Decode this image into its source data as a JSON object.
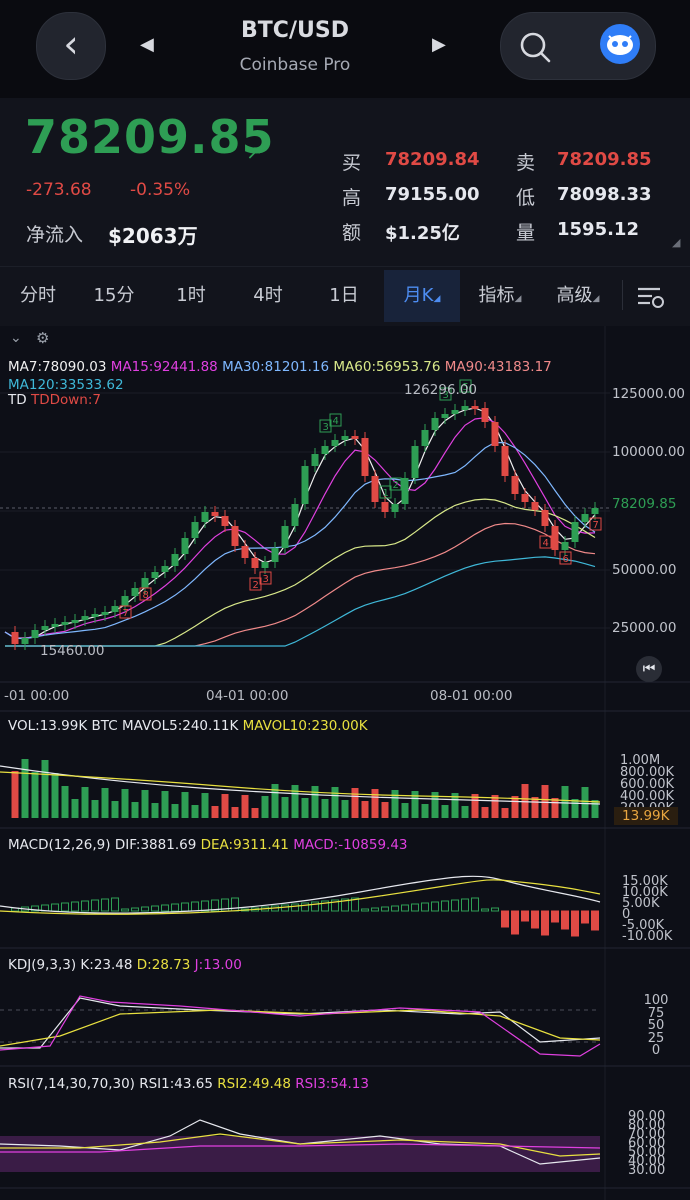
{
  "nav": {
    "back_icon": "chevron-left-icon",
    "pair": "BTC/USD",
    "exchange": "Coinbase Pro",
    "prev_icon": "triangle-left-icon",
    "next_icon": "triangle-right-icon",
    "search_icon": "search-icon",
    "bot_icon": "bot-icon"
  },
  "ticker": {
    "price": "78209.85",
    "change": "-273.68",
    "change_pct": "-0.35%",
    "net_inflow_label": "净流入",
    "net_inflow_value": "$2063万",
    "bid_label": "买",
    "bid": "78209.84",
    "ask_label": "卖",
    "ask": "78209.85",
    "high_label": "高",
    "high": "79155.00",
    "low_label": "低",
    "low": "78098.33",
    "amount_label": "额",
    "amount": "$1.25亿",
    "volume_label": "量",
    "volume": "1595.12",
    "up_color": "#2e9e54",
    "down_color": "#e04a45"
  },
  "tabs": [
    "分时",
    "15分",
    "1时",
    "4时",
    "1日",
    "月K",
    "指标",
    "高级"
  ],
  "active_tab": "月K",
  "main_chart": {
    "ma_legend": [
      {
        "text": "MA7:78090.03",
        "color": "#f0f0f0"
      },
      {
        "text": "MA15:92441.88",
        "color": "#e040e0"
      },
      {
        "text": "MA30:81201.16",
        "color": "#7fb8ff"
      },
      {
        "text": "MA60:56953.76",
        "color": "#d8e88a"
      },
      {
        "text": "MA90:43183.17",
        "color": "#f08a8a"
      },
      {
        "text": "MA120:33533.62",
        "color": "#3fb8d8"
      }
    ],
    "td_label": "TD",
    "td_value": "TDDown:7",
    "price_axis": [
      "125000.00",
      "100000.00",
      "78209.85",
      "50000.00",
      "25000.00"
    ],
    "high_mark": "126296.00",
    "low_mark": "15460.00",
    "time_axis": [
      "-01 00:00",
      "04-01 00:00",
      "08-01 00:00"
    ]
  },
  "volume": {
    "legend": [
      {
        "text": "VOL:13.99K BTC",
        "color": "#e6e8ee"
      },
      {
        "text": "MAVOL5:240.11K",
        "color": "#e6e8ee"
      },
      {
        "text": "MAVOL10:230.00K",
        "color": "#e8e040"
      }
    ],
    "axis": [
      "1.00M",
      "800.00K",
      "600.00K",
      "400.00K",
      "200.00K"
    ],
    "current": "13.99K"
  },
  "macd": {
    "legend": [
      {
        "text": "MACD(12,26,9)",
        "color": "#e6e8ee"
      },
      {
        "text": "DIF:3881.69",
        "color": "#e6e8ee"
      },
      {
        "text": "DEA:9311.41",
        "color": "#e8e040"
      },
      {
        "text": "MACD:-10859.43",
        "color": "#e040e0"
      }
    ],
    "axis": [
      "15.00K",
      "10.00K",
      "5.00K",
      "0",
      "-5.00K",
      "-10.00K"
    ]
  },
  "kdj": {
    "legend": [
      {
        "text": "KDJ(9,3,3)",
        "color": "#e6e8ee"
      },
      {
        "text": "K:23.48",
        "color": "#e6e8ee"
      },
      {
        "text": "D:28.73",
        "color": "#e8e040"
      },
      {
        "text": "J:13.00",
        "color": "#e040e0"
      }
    ],
    "axis": [
      "100",
      "75",
      "50",
      "25",
      "0"
    ]
  },
  "rsi": {
    "legend": [
      {
        "text": "RSI(7,14,30,70,30)",
        "color": "#e6e8ee"
      },
      {
        "text": "RSI1:43.65",
        "color": "#e6e8ee"
      },
      {
        "text": "RSI2:49.48",
        "color": "#e8e040"
      },
      {
        "text": "RSI3:54.13",
        "color": "#e040e0"
      }
    ],
    "axis": [
      "90.00",
      "80.00",
      "70.00",
      "60.00",
      "50.00",
      "40.00",
      "30.00"
    ]
  }
}
